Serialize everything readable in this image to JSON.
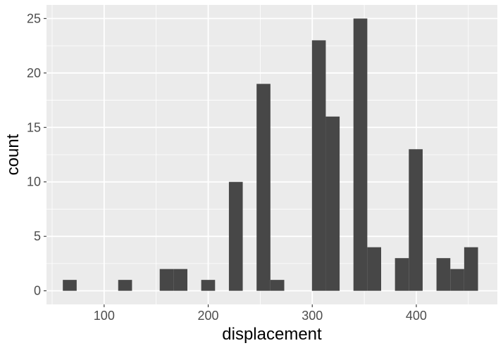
{
  "chart_data": {
    "type": "bar",
    "subtype": "histogram",
    "xlabel": "displacement",
    "ylabel": "count",
    "xlim": [
      44.6,
      477.9
    ],
    "ylim": [
      -1.25,
      26.25
    ],
    "x_ticks": [
      100,
      200,
      300,
      400
    ],
    "x_tick_labels": [
      "100",
      "200",
      "300",
      "400"
    ],
    "y_ticks": [
      0,
      5,
      10,
      15,
      20,
      25
    ],
    "y_tick_labels": [
      "0",
      "5",
      "10",
      "15",
      "20",
      "25"
    ],
    "bin_width": 13.3,
    "bins": [
      {
        "x0": 60.3,
        "x1": 73.6,
        "count": 1
      },
      {
        "x0": 113.5,
        "x1": 126.8,
        "count": 1
      },
      {
        "x0": 153.4,
        "x1": 166.7,
        "count": 2
      },
      {
        "x0": 166.7,
        "x1": 180.0,
        "count": 2
      },
      {
        "x0": 193.3,
        "x1": 206.6,
        "count": 1
      },
      {
        "x0": 219.9,
        "x1": 233.2,
        "count": 10
      },
      {
        "x0": 246.5,
        "x1": 259.8,
        "count": 19
      },
      {
        "x0": 259.8,
        "x1": 273.1,
        "count": 1
      },
      {
        "x0": 299.7,
        "x1": 313.0,
        "count": 23
      },
      {
        "x0": 313.0,
        "x1": 326.3,
        "count": 16
      },
      {
        "x0": 339.6,
        "x1": 352.9,
        "count": 25
      },
      {
        "x0": 352.9,
        "x1": 366.2,
        "count": 4
      },
      {
        "x0": 379.5,
        "x1": 392.8,
        "count": 3
      },
      {
        "x0": 392.8,
        "x1": 406.1,
        "count": 13
      },
      {
        "x0": 419.4,
        "x1": 432.7,
        "count": 3
      },
      {
        "x0": 432.7,
        "x1": 446.0,
        "count": 2
      },
      {
        "x0": 446.0,
        "x1": 459.3,
        "count": 4
      }
    ],
    "grid": true,
    "colors": {
      "panel": "#ebebeb",
      "grid_major": "#ffffff",
      "bar": "#474747",
      "tick_text": "#4d4d4d",
      "axis_title": "#000000"
    }
  }
}
